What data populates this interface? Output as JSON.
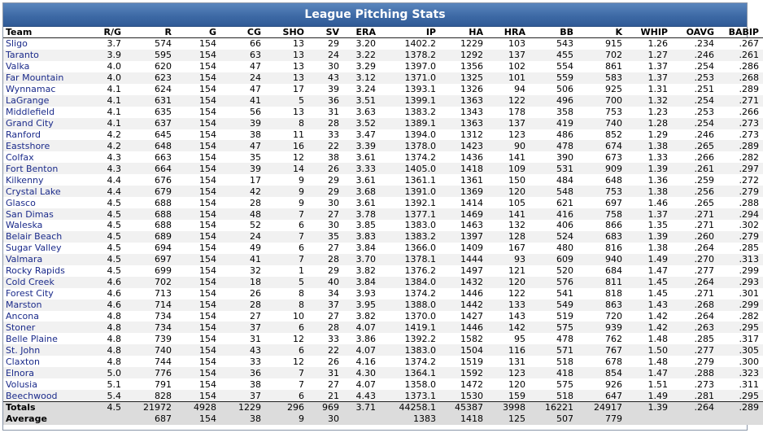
{
  "title": "League Pitching Stats",
  "columns": [
    "Team",
    "R/G",
    "R",
    "G",
    "CG",
    "SHO",
    "SV",
    "ERA",
    "IP",
    "HA",
    "HRA",
    "BB",
    "K",
    "WHIP",
    "OAVG",
    "BABIP"
  ],
  "rows": [
    [
      "Sligo",
      "3.7",
      "574",
      "154",
      "66",
      "13",
      "29",
      "3.20",
      "1402.2",
      "1229",
      "103",
      "543",
      "915",
      "1.26",
      ".234",
      ".267"
    ],
    [
      "Taranto",
      "3.9",
      "595",
      "154",
      "63",
      "13",
      "24",
      "3.22",
      "1378.2",
      "1292",
      "137",
      "455",
      "702",
      "1.27",
      ".246",
      ".261"
    ],
    [
      "Valka",
      "4.0",
      "620",
      "154",
      "47",
      "13",
      "30",
      "3.29",
      "1397.0",
      "1356",
      "102",
      "554",
      "861",
      "1.37",
      ".254",
      ".286"
    ],
    [
      "Far Mountain",
      "4.0",
      "623",
      "154",
      "24",
      "13",
      "43",
      "3.12",
      "1371.0",
      "1325",
      "101",
      "559",
      "583",
      "1.37",
      ".253",
      ".268"
    ],
    [
      "Wynnamac",
      "4.1",
      "624",
      "154",
      "47",
      "17",
      "39",
      "3.24",
      "1393.1",
      "1326",
      "94",
      "506",
      "925",
      "1.31",
      ".251",
      ".289"
    ],
    [
      "LaGrange",
      "4.1",
      "631",
      "154",
      "41",
      "5",
      "36",
      "3.51",
      "1399.1",
      "1363",
      "122",
      "496",
      "700",
      "1.32",
      ".254",
      ".271"
    ],
    [
      "Middlefield",
      "4.1",
      "635",
      "154",
      "56",
      "13",
      "31",
      "3.63",
      "1383.2",
      "1343",
      "178",
      "358",
      "753",
      "1.23",
      ".253",
      ".266"
    ],
    [
      "Grand City",
      "4.1",
      "637",
      "154",
      "39",
      "8",
      "28",
      "3.52",
      "1389.1",
      "1363",
      "137",
      "419",
      "740",
      "1.28",
      ".254",
      ".273"
    ],
    [
      "Ranford",
      "4.2",
      "645",
      "154",
      "38",
      "11",
      "33",
      "3.47",
      "1394.0",
      "1312",
      "123",
      "486",
      "852",
      "1.29",
      ".246",
      ".273"
    ],
    [
      "Eastshore",
      "4.2",
      "648",
      "154",
      "47",
      "16",
      "22",
      "3.39",
      "1378.0",
      "1423",
      "90",
      "478",
      "674",
      "1.38",
      ".265",
      ".289"
    ],
    [
      "Colfax",
      "4.3",
      "663",
      "154",
      "35",
      "12",
      "38",
      "3.61",
      "1374.2",
      "1436",
      "141",
      "390",
      "673",
      "1.33",
      ".266",
      ".282"
    ],
    [
      "Fort Benton",
      "4.3",
      "664",
      "154",
      "39",
      "14",
      "26",
      "3.33",
      "1405.0",
      "1418",
      "109",
      "531",
      "909",
      "1.39",
      ".261",
      ".297"
    ],
    [
      "Kilkenny",
      "4.4",
      "676",
      "154",
      "17",
      "9",
      "29",
      "3.61",
      "1361.1",
      "1361",
      "150",
      "484",
      "648",
      "1.36",
      ".259",
      ".272"
    ],
    [
      "Crystal Lake",
      "4.4",
      "679",
      "154",
      "42",
      "9",
      "29",
      "3.68",
      "1391.0",
      "1369",
      "120",
      "548",
      "753",
      "1.38",
      ".256",
      ".279"
    ],
    [
      "Glasco",
      "4.5",
      "688",
      "154",
      "28",
      "9",
      "30",
      "3.61",
      "1392.1",
      "1414",
      "105",
      "621",
      "697",
      "1.46",
      ".265",
      ".288"
    ],
    [
      "San Dimas",
      "4.5",
      "688",
      "154",
      "48",
      "7",
      "27",
      "3.78",
      "1377.1",
      "1469",
      "141",
      "416",
      "758",
      "1.37",
      ".271",
      ".294"
    ],
    [
      "Waleska",
      "4.5",
      "688",
      "154",
      "52",
      "6",
      "30",
      "3.85",
      "1383.0",
      "1463",
      "132",
      "406",
      "866",
      "1.35",
      ".271",
      ".302"
    ],
    [
      "Belair Beach",
      "4.5",
      "689",
      "154",
      "24",
      "7",
      "35",
      "3.83",
      "1383.2",
      "1397",
      "128",
      "524",
      "683",
      "1.39",
      ".260",
      ".279"
    ],
    [
      "Sugar Valley",
      "4.5",
      "694",
      "154",
      "49",
      "6",
      "27",
      "3.84",
      "1366.0",
      "1409",
      "167",
      "480",
      "816",
      "1.38",
      ".264",
      ".285"
    ],
    [
      "Valmara",
      "4.5",
      "697",
      "154",
      "41",
      "7",
      "28",
      "3.70",
      "1378.1",
      "1444",
      "93",
      "609",
      "940",
      "1.49",
      ".270",
      ".313"
    ],
    [
      "Rocky Rapids",
      "4.5",
      "699",
      "154",
      "32",
      "1",
      "29",
      "3.82",
      "1376.2",
      "1497",
      "121",
      "520",
      "684",
      "1.47",
      ".277",
      ".299"
    ],
    [
      "Cold Creek",
      "4.6",
      "702",
      "154",
      "18",
      "5",
      "40",
      "3.84",
      "1384.0",
      "1432",
      "120",
      "576",
      "811",
      "1.45",
      ".264",
      ".293"
    ],
    [
      "Forest City",
      "4.6",
      "713",
      "154",
      "26",
      "8",
      "34",
      "3.93",
      "1374.2",
      "1446",
      "122",
      "541",
      "818",
      "1.45",
      ".271",
      ".301"
    ],
    [
      "Marston",
      "4.6",
      "714",
      "154",
      "28",
      "8",
      "37",
      "3.95",
      "1388.0",
      "1442",
      "133",
      "549",
      "863",
      "1.43",
      ".268",
      ".299"
    ],
    [
      "Ancona",
      "4.8",
      "734",
      "154",
      "27",
      "10",
      "27",
      "3.82",
      "1370.0",
      "1427",
      "143",
      "519",
      "720",
      "1.42",
      ".264",
      ".282"
    ],
    [
      "Stoner",
      "4.8",
      "734",
      "154",
      "37",
      "6",
      "28",
      "4.07",
      "1419.1",
      "1446",
      "142",
      "575",
      "939",
      "1.42",
      ".263",
      ".295"
    ],
    [
      "Belle Plaine",
      "4.8",
      "739",
      "154",
      "31",
      "12",
      "33",
      "3.86",
      "1392.2",
      "1582",
      "95",
      "478",
      "762",
      "1.48",
      ".285",
      ".317"
    ],
    [
      "St. John",
      "4.8",
      "740",
      "154",
      "43",
      "6",
      "22",
      "4.07",
      "1383.0",
      "1504",
      "116",
      "571",
      "767",
      "1.50",
      ".277",
      ".305"
    ],
    [
      "Claxton",
      "4.8",
      "744",
      "154",
      "33",
      "12",
      "26",
      "4.16",
      "1374.2",
      "1519",
      "131",
      "518",
      "678",
      "1.48",
      ".279",
      ".300"
    ],
    [
      "Elnora",
      "5.0",
      "776",
      "154",
      "36",
      "7",
      "31",
      "4.30",
      "1364.1",
      "1592",
      "123",
      "418",
      "854",
      "1.47",
      ".288",
      ".323"
    ],
    [
      "Volusia",
      "5.1",
      "791",
      "154",
      "38",
      "7",
      "27",
      "4.07",
      "1358.0",
      "1472",
      "120",
      "575",
      "926",
      "1.51",
      ".273",
      ".311"
    ],
    [
      "Beechwood",
      "5.4",
      "828",
      "154",
      "37",
      "6",
      "21",
      "4.43",
      "1373.1",
      "1530",
      "159",
      "518",
      "647",
      "1.49",
      ".281",
      ".295"
    ]
  ],
  "totals": [
    "Totals",
    "4.5",
    "21972",
    "4928",
    "1229",
    "296",
    "969",
    "3.71",
    "44258.1",
    "45387",
    "3998",
    "16221",
    "24917",
    "1.39",
    ".264",
    ".289"
  ],
  "average": [
    "Average",
    "",
    "687",
    "154",
    "38",
    "9",
    "30",
    "",
    "1383",
    "1418",
    "125",
    "507",
    "779",
    "",
    "",
    ""
  ]
}
